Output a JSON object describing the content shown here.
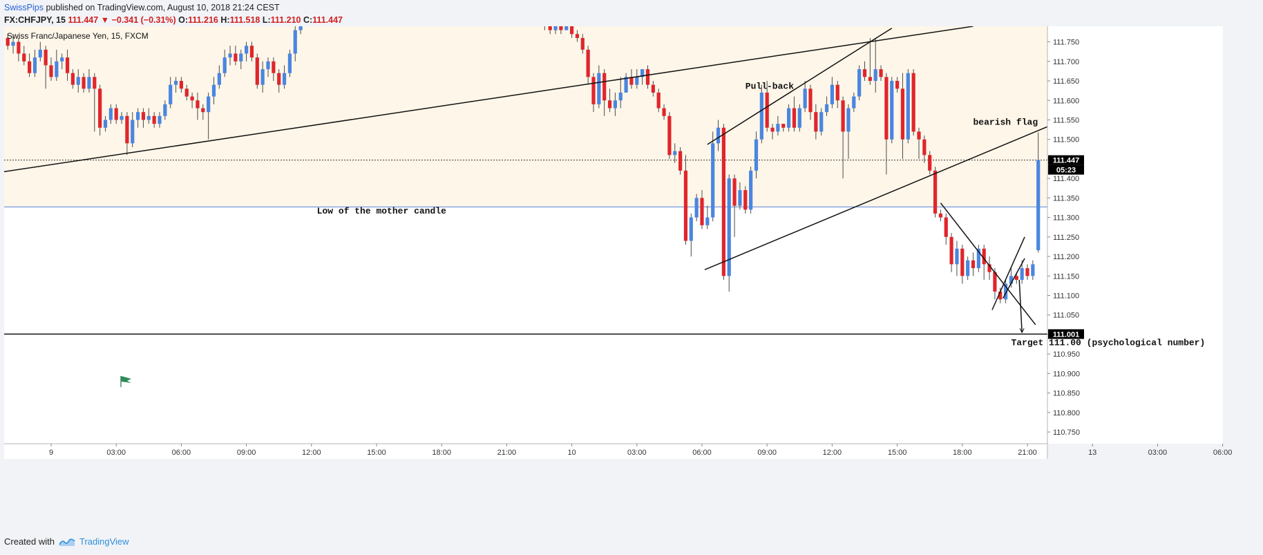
{
  "header": {
    "author": "SwissPips",
    "published": "published on TradingView.com, August 10, 2018 21:24 CEST"
  },
  "ohlc": {
    "symbol": "FX:CHFJPY, 15",
    "last": "111.447",
    "change": "−0.341 (−0.31%)",
    "open_label": "O:",
    "open": "111.216",
    "high_label": "H:",
    "high": "111.518",
    "low_label": "L:",
    "low": "111.210",
    "close_label": "C:",
    "close": "111.447"
  },
  "chart_title": "Swiss Franc/Japanese Yen, 15, FXCM",
  "footer": {
    "created_with": "Created with",
    "brand": "TradingView"
  },
  "colors": {
    "up": "#4a86e0",
    "down": "#e0262b",
    "zone": "#fdf6e9",
    "blue_line": "#5b82d6",
    "trendline": "#111111"
  },
  "chart_data": {
    "type": "candlestick",
    "ylim": [
      110.72,
      111.79
    ],
    "y_ticks": [
      "111.750",
      "111.700",
      "111.650",
      "111.600",
      "111.550",
      "111.500",
      "111.450",
      "111.400",
      "111.350",
      "111.300",
      "111.250",
      "111.200",
      "111.150",
      "111.100",
      "111.050",
      "111.000",
      "110.950",
      "110.900",
      "110.850",
      "110.800",
      "110.750"
    ],
    "x_ticks": [
      {
        "label": "9",
        "idx": 8
      },
      {
        "label": "03:00",
        "idx": 20
      },
      {
        "label": "06:00",
        "idx": 32
      },
      {
        "label": "09:00",
        "idx": 44
      },
      {
        "label": "12:00",
        "idx": 56
      },
      {
        "label": "15:00",
        "idx": 68
      },
      {
        "label": "18:00",
        "idx": 80
      },
      {
        "label": "21:00",
        "idx": 92
      },
      {
        "label": "10",
        "idx": 104
      },
      {
        "label": "03:00",
        "idx": 116
      },
      {
        "label": "06:00",
        "idx": 128
      },
      {
        "label": "09:00",
        "idx": 140
      },
      {
        "label": "12:00",
        "idx": 152
      },
      {
        "label": "15:00",
        "idx": 164
      },
      {
        "label": "18:00",
        "idx": 176
      },
      {
        "label": "21:00",
        "idx": 188
      },
      {
        "label": "13",
        "idx": 200
      },
      {
        "label": "03:00",
        "idx": 212
      },
      {
        "label": "06:00",
        "idx": 224
      }
    ],
    "price_labels": [
      {
        "value": "111.447",
        "sub": "05:23",
        "price": 111.447
      },
      {
        "value": "111.001",
        "price": 111.001
      }
    ],
    "zone": {
      "from": 111.327,
      "to": 111.79
    },
    "blue_level": 111.327,
    "current_level": 111.447,
    "target_level": 111.001,
    "annotations": [
      {
        "text": "Pull-back",
        "idx": 136,
        "price": 111.63
      },
      {
        "text": "bearish flag",
        "idx": 178,
        "price": 111.538
      },
      {
        "text": "Low of the mother candle",
        "idx": 57,
        "price": 111.31
      },
      {
        "text": "Target 111.00 (psychological number)",
        "idx": 185,
        "price": 110.972
      }
    ],
    "trendlines": [
      {
        "i1": -0.8,
        "p1": 111.417,
        "i2": 178,
        "p2": 111.79
      },
      {
        "i1": 129,
        "p1": 111.487,
        "i2": 163,
        "p2": 111.785
      },
      {
        "i1": 128.5,
        "p1": 111.166,
        "i2": 209,
        "p2": 111.633
      },
      {
        "i1": 172,
        "p1": 111.337,
        "i2": 189.5,
        "p2": 111.025
      },
      {
        "i1": 181.5,
        "p1": 111.063,
        "i2": 187.5,
        "p2": 111.25
      },
      {
        "i1": 183.5,
        "p1": 111.093,
        "i2": 187.5,
        "p2": 111.195
      },
      {
        "i1": 186.5,
        "p1": 111.14,
        "i2": 187,
        "p2": 111.005
      }
    ],
    "candles": [
      [
        111.76,
        111.74,
        111.77,
        111.73
      ],
      [
        111.74,
        111.75,
        111.77,
        111.72
      ],
      [
        111.75,
        111.72,
        111.76,
        111.7
      ],
      [
        111.72,
        111.7,
        111.74,
        111.69
      ],
      [
        111.7,
        111.67,
        111.72,
        111.66
      ],
      [
        111.67,
        111.71,
        111.73,
        111.66
      ],
      [
        111.71,
        111.73,
        111.75,
        111.7
      ],
      [
        111.73,
        111.69,
        111.74,
        111.63
      ],
      [
        111.69,
        111.66,
        111.71,
        111.65
      ],
      [
        111.66,
        111.7,
        111.73,
        111.65
      ],
      [
        111.7,
        111.71,
        111.72,
        111.68
      ],
      [
        111.71,
        111.67,
        111.73,
        111.65
      ],
      [
        111.67,
        111.64,
        111.68,
        111.63
      ],
      [
        111.64,
        111.66,
        111.68,
        111.62
      ],
      [
        111.66,
        111.63,
        111.67,
        111.62
      ],
      [
        111.63,
        111.66,
        111.68,
        111.62
      ],
      [
        111.66,
        111.63,
        111.67,
        111.52
      ],
      [
        111.63,
        111.53,
        111.64,
        111.51
      ],
      [
        111.53,
        111.55,
        111.56,
        111.52
      ],
      [
        111.55,
        111.58,
        111.59,
        111.54
      ],
      [
        111.58,
        111.55,
        111.59,
        111.54
      ],
      [
        111.55,
        111.56,
        111.57,
        111.54
      ],
      [
        111.56,
        111.49,
        111.57,
        111.46
      ],
      [
        111.49,
        111.55,
        111.57,
        111.48
      ],
      [
        111.55,
        111.57,
        111.58,
        111.53
      ],
      [
        111.57,
        111.55,
        111.58,
        111.53
      ],
      [
        111.55,
        111.56,
        111.58,
        111.54
      ],
      [
        111.56,
        111.54,
        111.57,
        111.53
      ],
      [
        111.54,
        111.56,
        111.57,
        111.53
      ],
      [
        111.56,
        111.59,
        111.6,
        111.55
      ],
      [
        111.59,
        111.64,
        111.66,
        111.58
      ],
      [
        111.64,
        111.65,
        111.66,
        111.62
      ],
      [
        111.65,
        111.63,
        111.66,
        111.62
      ],
      [
        111.63,
        111.61,
        111.64,
        111.6
      ],
      [
        111.61,
        111.6,
        111.62,
        111.58
      ],
      [
        111.6,
        111.58,
        111.62,
        111.55
      ],
      [
        111.58,
        111.57,
        111.59,
        111.55
      ],
      [
        111.57,
        111.61,
        111.62,
        111.5
      ],
      [
        111.61,
        111.64,
        111.66,
        111.59
      ],
      [
        111.64,
        111.67,
        111.69,
        111.63
      ],
      [
        111.67,
        111.71,
        111.73,
        111.66
      ],
      [
        111.71,
        111.72,
        111.74,
        111.69
      ],
      [
        111.72,
        111.7,
        111.74,
        111.69
      ],
      [
        111.7,
        111.72,
        111.73,
        111.68
      ],
      [
        111.72,
        111.74,
        111.75,
        111.7
      ],
      [
        111.74,
        111.71,
        111.75,
        111.7
      ],
      [
        111.71,
        111.64,
        111.72,
        111.63
      ],
      [
        111.64,
        111.68,
        111.7,
        111.62
      ],
      [
        111.68,
        111.7,
        111.71,
        111.66
      ],
      [
        111.7,
        111.67,
        111.71,
        111.65
      ],
      [
        111.67,
        111.64,
        111.68,
        111.62
      ],
      [
        111.64,
        111.67,
        111.69,
        111.63
      ],
      [
        111.67,
        111.72,
        111.73,
        111.66
      ],
      [
        111.72,
        111.78,
        111.79,
        111.7
      ],
      [
        111.78,
        111.8,
        111.82,
        111.77
      ]
    ],
    "candles_b": [
      [
        111.82,
        111.79,
        111.83,
        111.78
      ],
      [
        111.79,
        111.78,
        111.8,
        111.77
      ],
      [
        111.78,
        111.79,
        111.8,
        111.77
      ],
      [
        111.79,
        111.78,
        111.8,
        111.77
      ],
      [
        111.78,
        111.8,
        111.81,
        111.78
      ],
      [
        111.8,
        111.77,
        111.81,
        111.76
      ],
      [
        111.77,
        111.76,
        111.78,
        111.75
      ],
      [
        111.76,
        111.73,
        111.77,
        111.72
      ],
      [
        111.73,
        111.66,
        111.74,
        111.64
      ],
      [
        111.66,
        111.59,
        111.67,
        111.57
      ],
      [
        111.59,
        111.67,
        111.69,
        111.58
      ],
      [
        111.67,
        111.6,
        111.68,
        111.56
      ],
      [
        111.6,
        111.58,
        111.63,
        111.57
      ],
      [
        111.58,
        111.6,
        111.62,
        111.56
      ],
      [
        111.6,
        111.62,
        111.66,
        111.58
      ],
      [
        111.62,
        111.66,
        111.67,
        111.62
      ],
      [
        111.66,
        111.64,
        111.68,
        111.63
      ],
      [
        111.64,
        111.66,
        111.68,
        111.63
      ],
      [
        111.66,
        111.68,
        111.68,
        111.64
      ],
      [
        111.68,
        111.64,
        111.69,
        111.63
      ],
      [
        111.64,
        111.62,
        111.65,
        111.61
      ],
      [
        111.62,
        111.58,
        111.63,
        111.57
      ],
      [
        111.58,
        111.56,
        111.59,
        111.55
      ],
      [
        111.56,
        111.46,
        111.57,
        111.45
      ],
      [
        111.46,
        111.47,
        111.49,
        111.44
      ],
      [
        111.47,
        111.42,
        111.48,
        111.41
      ],
      [
        111.42,
        111.24,
        111.46,
        111.23
      ],
      [
        111.24,
        111.3,
        111.31,
        111.2
      ],
      [
        111.3,
        111.35,
        111.36,
        111.29
      ],
      [
        111.35,
        111.28,
        111.37,
        111.27
      ],
      [
        111.28,
        111.3,
        111.33,
        111.27
      ],
      [
        111.3,
        111.49,
        111.52,
        111.29
      ],
      [
        111.49,
        111.53,
        111.55,
        111.47
      ],
      [
        111.53,
        111.15,
        111.54,
        111.14
      ],
      [
        111.15,
        111.4,
        111.41,
        111.11
      ],
      [
        111.4,
        111.33,
        111.41,
        111.25
      ],
      [
        111.33,
        111.37,
        111.39,
        111.32
      ],
      [
        111.37,
        111.32,
        111.38,
        111.31
      ],
      [
        111.32,
        111.42,
        111.43,
        111.31
      ],
      [
        111.42,
        111.5,
        111.52,
        111.4
      ],
      [
        111.5,
        111.62,
        111.64,
        111.49
      ],
      [
        111.62,
        111.53,
        111.65,
        111.52
      ],
      [
        111.53,
        111.52,
        111.54,
        111.5
      ],
      [
        111.52,
        111.54,
        111.56,
        111.51
      ],
      [
        111.54,
        111.53,
        111.54,
        111.52
      ],
      [
        111.53,
        111.58,
        111.59,
        111.52
      ],
      [
        111.58,
        111.53,
        111.61,
        111.52
      ],
      [
        111.53,
        111.58,
        111.59,
        111.52
      ],
      [
        111.58,
        111.63,
        111.65,
        111.57
      ],
      [
        111.63,
        111.57,
        111.64,
        111.55
      ],
      [
        111.57,
        111.52,
        111.59,
        111.5
      ],
      [
        111.52,
        111.57,
        111.58,
        111.51
      ],
      [
        111.57,
        111.59,
        111.61,
        111.56
      ],
      [
        111.59,
        111.64,
        111.66,
        111.58
      ],
      [
        111.64,
        111.6,
        111.65,
        111.58
      ],
      [
        111.6,
        111.52,
        111.61,
        111.4
      ],
      [
        111.52,
        111.58,
        111.59,
        111.45
      ],
      [
        111.58,
        111.61,
        111.62,
        111.57
      ],
      [
        111.61,
        111.68,
        111.69,
        111.6
      ],
      [
        111.68,
        111.66,
        111.7,
        111.65
      ],
      [
        111.66,
        111.65,
        111.76,
        111.64
      ],
      [
        111.65,
        111.68,
        111.76,
        111.62
      ],
      [
        111.68,
        111.66,
        111.69,
        111.65
      ],
      [
        111.66,
        111.5,
        111.67,
        111.41
      ],
      [
        111.5,
        111.65,
        111.66,
        111.49
      ],
      [
        111.65,
        111.63,
        111.66,
        111.62
      ],
      [
        111.63,
        111.5,
        111.67,
        111.45
      ],
      [
        111.5,
        111.67,
        111.68,
        111.49
      ],
      [
        111.67,
        111.52,
        111.68,
        111.51
      ],
      [
        111.52,
        111.5,
        111.53,
        111.45
      ],
      [
        111.5,
        111.46,
        111.51,
        111.44
      ],
      [
        111.46,
        111.42,
        111.47,
        111.41
      ],
      [
        111.42,
        111.31,
        111.43,
        111.3
      ],
      [
        111.31,
        111.3,
        111.32,
        111.29
      ],
      [
        111.3,
        111.25,
        111.31,
        111.23
      ],
      [
        111.25,
        111.18,
        111.26,
        111.16
      ],
      [
        111.18,
        111.22,
        111.24,
        111.15
      ],
      [
        111.22,
        111.15,
        111.23,
        111.13
      ],
      [
        111.15,
        111.19,
        111.2,
        111.14
      ],
      [
        111.19,
        111.17,
        111.21,
        111.15
      ],
      [
        111.17,
        111.22,
        111.23,
        111.16
      ],
      [
        111.22,
        111.18,
        111.23,
        111.14
      ],
      [
        111.18,
        111.16,
        111.2,
        111.14
      ],
      [
        111.16,
        111.11,
        111.17,
        111.09
      ],
      [
        111.11,
        111.09,
        111.12,
        111.08
      ],
      [
        111.09,
        111.13,
        111.14,
        111.08
      ],
      [
        111.13,
        111.15,
        111.17,
        111.12
      ],
      [
        111.15,
        111.14,
        111.16,
        111.13
      ],
      [
        111.14,
        111.17,
        111.19,
        111.13
      ],
      [
        111.17,
        111.15,
        111.18,
        111.14
      ],
      [
        111.15,
        111.18,
        111.19,
        111.14
      ],
      [
        111.216,
        111.447,
        111.518,
        111.21
      ]
    ],
    "candles_b_start": 99
  }
}
